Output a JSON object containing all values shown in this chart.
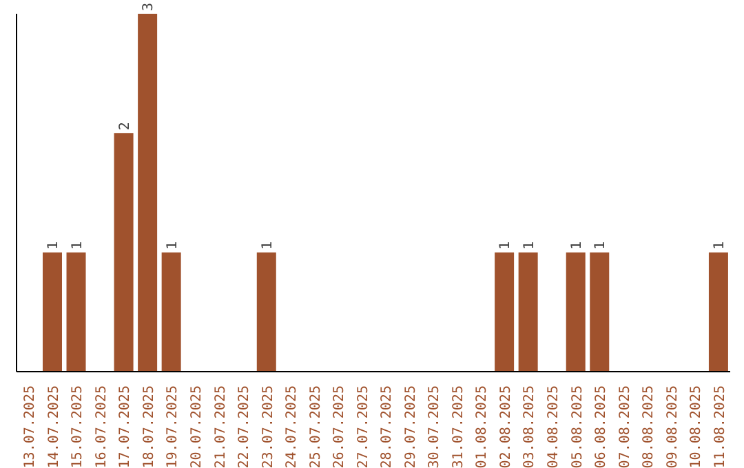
{
  "chart_data": {
    "type": "bar",
    "categories": [
      "13.07.2025",
      "14.07.2025",
      "15.07.2025",
      "16.07.2025",
      "17.07.2025",
      "18.07.2025",
      "19.07.2025",
      "20.07.2025",
      "21.07.2025",
      "22.07.2025",
      "23.07.2025",
      "24.07.2025",
      "25.07.2025",
      "26.07.2025",
      "27.07.2025",
      "28.07.2025",
      "29.07.2025",
      "30.07.2025",
      "31.07.2025",
      "01.08.2025",
      "02.08.2025",
      "03.08.2025",
      "04.08.2025",
      "05.08.2025",
      "06.08.2025",
      "07.08.2025",
      "08.08.2025",
      "09.08.2025",
      "10.08.2025",
      "11.08.2025"
    ],
    "values": [
      0,
      1,
      1,
      0,
      2,
      3,
      1,
      0,
      0,
      0,
      1,
      0,
      0,
      0,
      0,
      0,
      0,
      0,
      0,
      0,
      1,
      1,
      0,
      1,
      1,
      0,
      0,
      0,
      0,
      1
    ],
    "value_labels": [
      null,
      "1",
      "1",
      null,
      "2",
      "3",
      "1",
      null,
      null,
      null,
      "1",
      null,
      null,
      null,
      null,
      null,
      null,
      null,
      null,
      null,
      "1",
      "1",
      null,
      "1",
      "1",
      null,
      null,
      null,
      null,
      "1"
    ],
    "color": "#a0522d",
    "ylim": [
      0,
      3
    ],
    "tick_labels": "x",
    "grid": false,
    "legend": false
  }
}
